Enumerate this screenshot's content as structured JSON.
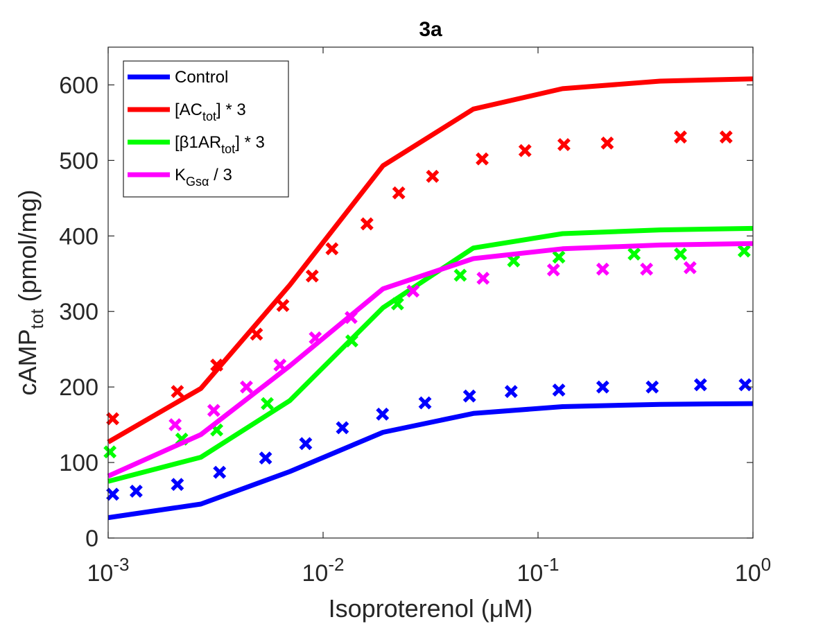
{
  "chart_data": {
    "type": "line",
    "title": "3a",
    "xlabel": "Isoproterenol (μM)",
    "xscale": "log",
    "xlim": [
      0.001,
      1
    ],
    "ylim": [
      0,
      650
    ],
    "grid": false,
    "legend_position": "top-left",
    "x_ticks": [
      {
        "base": "10",
        "exp": "-3",
        "value": 0.001
      },
      {
        "base": "10",
        "exp": "-2",
        "value": 0.01
      },
      {
        "base": "10",
        "exp": "-1",
        "value": 0.1
      },
      {
        "base": "10",
        "exp": "0",
        "value": 1
      }
    ],
    "y_ticks": [
      "0",
      "100",
      "200",
      "300",
      "400",
      "500",
      "600"
    ],
    "ylabel": {
      "main": "cAMP",
      "sub": "tot",
      "unit": " (pmol/mg)"
    },
    "series": [
      {
        "name": "Control",
        "legend_parts": [
          {
            "t": "Control"
          }
        ],
        "color": "#0000ff",
        "model_x": [
          0.001,
          0.0027,
          0.007,
          0.019,
          0.05,
          0.13,
          0.37,
          1.0
        ],
        "model_y": [
          27,
          45,
          88,
          140,
          165,
          174,
          177,
          178
        ],
        "data_x": [
          0.00105,
          0.00135,
          0.0021,
          0.0033,
          0.0054,
          0.0083,
          0.0123,
          0.0189,
          0.0298,
          0.048,
          0.075,
          0.125,
          0.2,
          0.34,
          0.57,
          0.92
        ],
        "data_y": [
          58,
          62,
          71,
          87,
          106,
          125,
          146,
          164,
          179,
          188,
          194,
          196,
          200,
          200,
          203,
          203
        ]
      },
      {
        "name": "[ACtot] * 3",
        "legend_parts": [
          {
            "t": "[AC"
          },
          {
            "t": "tot",
            "sub": true
          },
          {
            "t": "] * 3"
          }
        ],
        "color": "#ff0000",
        "model_x": [
          0.001,
          0.0027,
          0.007,
          0.019,
          0.05,
          0.13,
          0.37,
          1.0
        ],
        "model_y": [
          127,
          198,
          335,
          493,
          568,
          595,
          605,
          608
        ],
        "data_x": [
          0.00105,
          0.0021,
          0.0032,
          0.0049,
          0.0065,
          0.0089,
          0.011,
          0.016,
          0.0225,
          0.0323,
          0.055,
          0.087,
          0.132,
          0.21,
          0.46,
          0.75
        ],
        "data_y": [
          158,
          194,
          229,
          270,
          308,
          347,
          383,
          416,
          457,
          479,
          502,
          513,
          521,
          523,
          531,
          531
        ]
      },
      {
        "name": "[β1ARtot] * 3",
        "legend_parts": [
          {
            "t": "["
          },
          {
            "t": "β"
          },
          {
            "t": "1AR"
          },
          {
            "t": "tot",
            "sub": true
          },
          {
            "t": "] * 3"
          }
        ],
        "color": "#00ff00",
        "model_x": [
          0.001,
          0.0027,
          0.007,
          0.019,
          0.05,
          0.13,
          0.37,
          1.0
        ],
        "model_y": [
          75,
          107,
          182,
          305,
          384,
          403,
          408,
          410
        ],
        "data_x": [
          0.00102,
          0.0022,
          0.0032,
          0.0055,
          0.0136,
          0.0222,
          0.0435,
          0.077,
          0.125,
          0.28,
          0.46,
          0.91
        ],
        "data_y": [
          114,
          131,
          143,
          178,
          261,
          310,
          348,
          367,
          372,
          376,
          376,
          380
        ]
      },
      {
        "name": "KGsα / 3",
        "legend_parts": [
          {
            "t": "K"
          },
          {
            "t": "Gsα",
            "sub": true
          },
          {
            "t": " / 3"
          }
        ],
        "color": "#ff00ff",
        "model_x": [
          0.001,
          0.0027,
          0.007,
          0.019,
          0.05,
          0.13,
          0.37,
          1.0
        ],
        "model_y": [
          82,
          137,
          228,
          330,
          370,
          383,
          388,
          390
        ],
        "data_x": [
          0.00205,
          0.0031,
          0.0044,
          0.0063,
          0.0092,
          0.0135,
          0.0262,
          0.0555,
          0.118,
          0.2,
          0.32,
          0.51
        ],
        "data_y": [
          150,
          169,
          200,
          229,
          265,
          292,
          327,
          344,
          355,
          356,
          356,
          358
        ]
      }
    ]
  }
}
